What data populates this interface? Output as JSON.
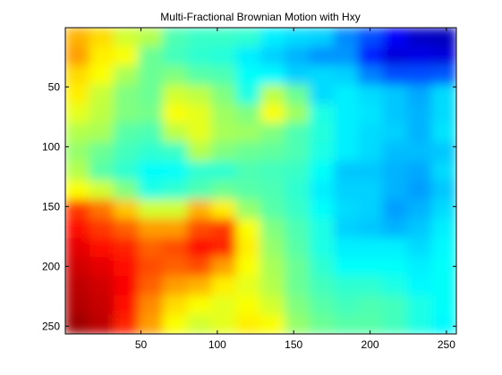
{
  "chart_data": {
    "type": "heatmap",
    "title": "Multi-Fractional Brownian Motion with Hxy",
    "xlabel": "",
    "ylabel": "",
    "xlim": [
      0.5,
      256.5
    ],
    "ylim": [
      256.5,
      0.5
    ],
    "y_axis_direction": "top-to-bottom",
    "x_ticks": [
      50,
      100,
      150,
      200,
      250
    ],
    "y_ticks": [
      50,
      100,
      150,
      200,
      250
    ],
    "colormap": "jet",
    "grid": false,
    "legend": "none",
    "grid_size": [
      16,
      16
    ],
    "note_values": "coarse 16x16 estimate of the 256x256 field, normalized 0 (blue) to 1 (red)",
    "values": [
      [
        0.7,
        0.66,
        0.58,
        0.55,
        0.45,
        0.43,
        0.43,
        0.42,
        0.36,
        0.34,
        0.33,
        0.26,
        0.2,
        0.12,
        0.07,
        0.06
      ],
      [
        0.72,
        0.64,
        0.62,
        0.48,
        0.44,
        0.42,
        0.41,
        0.36,
        0.33,
        0.3,
        0.27,
        0.27,
        0.15,
        0.09,
        0.1,
        0.09
      ],
      [
        0.66,
        0.62,
        0.54,
        0.48,
        0.5,
        0.46,
        0.45,
        0.38,
        0.37,
        0.33,
        0.34,
        0.33,
        0.25,
        0.2,
        0.2,
        0.21
      ],
      [
        0.64,
        0.57,
        0.5,
        0.48,
        0.58,
        0.56,
        0.5,
        0.4,
        0.56,
        0.48,
        0.34,
        0.36,
        0.34,
        0.32,
        0.29,
        0.34
      ],
      [
        0.6,
        0.56,
        0.5,
        0.49,
        0.62,
        0.6,
        0.53,
        0.5,
        0.62,
        0.53,
        0.4,
        0.36,
        0.35,
        0.32,
        0.3,
        0.34
      ],
      [
        0.55,
        0.54,
        0.46,
        0.45,
        0.56,
        0.6,
        0.54,
        0.53,
        0.5,
        0.45,
        0.41,
        0.36,
        0.34,
        0.33,
        0.3,
        0.35
      ],
      [
        0.52,
        0.48,
        0.44,
        0.42,
        0.43,
        0.55,
        0.5,
        0.48,
        0.47,
        0.45,
        0.4,
        0.36,
        0.34,
        0.31,
        0.31,
        0.32
      ],
      [
        0.55,
        0.46,
        0.42,
        0.38,
        0.38,
        0.42,
        0.42,
        0.45,
        0.44,
        0.43,
        0.38,
        0.32,
        0.32,
        0.3,
        0.29,
        0.34
      ],
      [
        0.62,
        0.58,
        0.5,
        0.4,
        0.42,
        0.45,
        0.48,
        0.46,
        0.45,
        0.42,
        0.36,
        0.33,
        0.33,
        0.3,
        0.28,
        0.32
      ],
      [
        0.82,
        0.76,
        0.68,
        0.58,
        0.58,
        0.7,
        0.64,
        0.52,
        0.46,
        0.43,
        0.38,
        0.34,
        0.33,
        0.28,
        0.3,
        0.34
      ],
      [
        0.86,
        0.82,
        0.78,
        0.72,
        0.72,
        0.8,
        0.82,
        0.62,
        0.5,
        0.45,
        0.4,
        0.33,
        0.32,
        0.3,
        0.32,
        0.36
      ],
      [
        0.9,
        0.86,
        0.84,
        0.78,
        0.8,
        0.86,
        0.84,
        0.64,
        0.52,
        0.46,
        0.4,
        0.36,
        0.36,
        0.36,
        0.34,
        0.37
      ],
      [
        0.92,
        0.9,
        0.86,
        0.8,
        0.78,
        0.8,
        0.72,
        0.62,
        0.54,
        0.48,
        0.42,
        0.38,
        0.38,
        0.38,
        0.36,
        0.38
      ],
      [
        0.94,
        0.92,
        0.88,
        0.78,
        0.72,
        0.7,
        0.64,
        0.6,
        0.55,
        0.48,
        0.44,
        0.42,
        0.42,
        0.4,
        0.37,
        0.38
      ],
      [
        0.95,
        0.93,
        0.86,
        0.74,
        0.66,
        0.62,
        0.6,
        0.62,
        0.58,
        0.5,
        0.46,
        0.44,
        0.45,
        0.44,
        0.4,
        0.38
      ],
      [
        0.97,
        0.94,
        0.84,
        0.72,
        0.62,
        0.58,
        0.6,
        0.64,
        0.62,
        0.52,
        0.48,
        0.46,
        0.46,
        0.44,
        0.4,
        0.37
      ]
    ]
  }
}
